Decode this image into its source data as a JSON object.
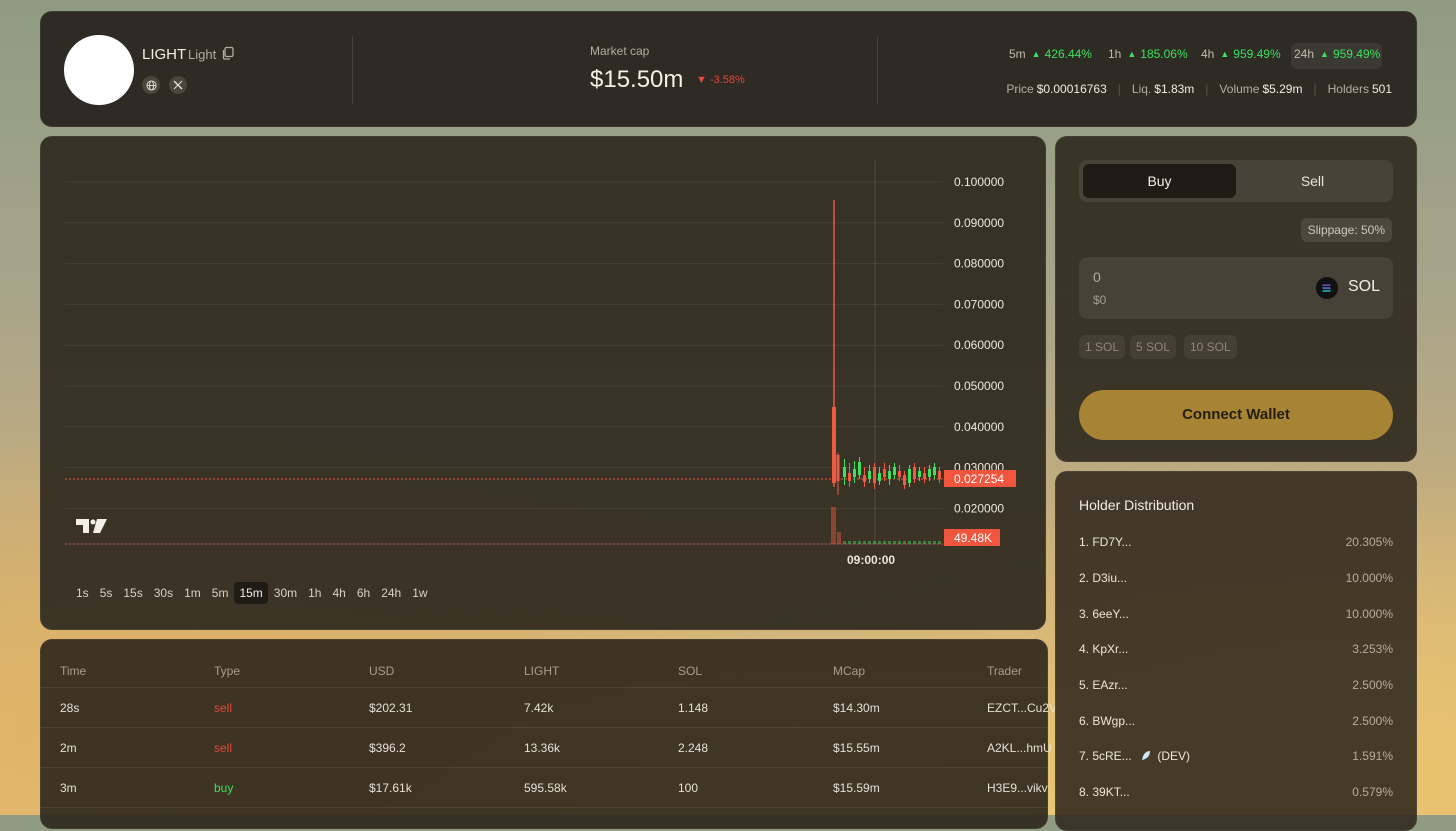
{
  "header": {
    "token_name": "LIGHT",
    "token_symbol": "Light",
    "market_cap_label": "Market cap",
    "market_cap_value": "$15.50m",
    "market_cap_change": "-3.58%",
    "timeframes": [
      {
        "label": "5m",
        "change": "426.44%"
      },
      {
        "label": "1h",
        "change": "185.06%"
      },
      {
        "label": "4h",
        "change": "959.49%"
      },
      {
        "label": "24h",
        "change": "959.49%"
      }
    ],
    "stats": {
      "price_label": "Price",
      "price_value": "$0.00016763",
      "liq_label": "Liq.",
      "liq_value": "$1.83m",
      "volume_label": "Volume",
      "volume_value": "$5.29m",
      "holders_label": "Holders",
      "holders_value": "501"
    }
  },
  "chart": {
    "price_ticks": [
      "0.100000",
      "0.090000",
      "0.080000",
      "0.070000",
      "0.060000",
      "0.050000",
      "0.040000",
      "0.030000",
      "0.020000"
    ],
    "current_price_label": "0.027254",
    "volume_label": "49.48K",
    "time_label": "09:00:00",
    "intervals": [
      "1s",
      "5s",
      "15s",
      "30s",
      "1m",
      "5m",
      "15m",
      "30m",
      "1h",
      "4h",
      "6h",
      "24h",
      "1w"
    ],
    "active_interval": "15m",
    "colors": {
      "up": "#3ee05e",
      "down": "#ef5a42",
      "label_bg": "#f0563e"
    }
  },
  "trades": {
    "columns": [
      "Time",
      "Type",
      "USD",
      "LIGHT",
      "SOL",
      "MCap",
      "Trader"
    ],
    "rows": [
      {
        "time": "28s",
        "type": "sell",
        "usd": "$202.31",
        "light": "7.42k",
        "sol": "1.148",
        "mcap": "$14.30m",
        "trader": "EZCT...Cu2V"
      },
      {
        "time": "2m",
        "type": "sell",
        "usd": "$396.2",
        "light": "13.36k",
        "sol": "2.248",
        "mcap": "$15.55m",
        "trader": "A2KL...hmU"
      },
      {
        "time": "3m",
        "type": "buy",
        "usd": "$17.61k",
        "light": "595.58k",
        "sol": "100",
        "mcap": "$15.59m",
        "trader": "H3E9...vikv"
      }
    ]
  },
  "swap": {
    "buy_label": "Buy",
    "sell_label": "Sell",
    "slippage": "Slippage: 50%",
    "amount": "0",
    "amount_usd": "$0",
    "currency": "SOL",
    "quick_amounts": [
      "1 SOL",
      "5 SOL",
      "10 SOL"
    ],
    "connect_label": "Connect Wallet"
  },
  "holders": {
    "title": "Holder Distribution",
    "rows": [
      {
        "name": "1. FD7Y...",
        "pct": "20.305%"
      },
      {
        "name": "2. D3iu...",
        "pct": "10.000%"
      },
      {
        "name": "3. 6eeY...",
        "pct": "10.000%"
      },
      {
        "name": "4. KpXr...",
        "pct": "3.253%"
      },
      {
        "name": "5. EAzr...",
        "pct": "2.500%"
      },
      {
        "name": "6. BWgp...",
        "pct": "2.500%"
      },
      {
        "name": "7. 5cRE...",
        "pct": "1.591%",
        "tag": "(DEV)"
      },
      {
        "name": "8. 39KT...",
        "pct": "0.579%"
      }
    ]
  }
}
